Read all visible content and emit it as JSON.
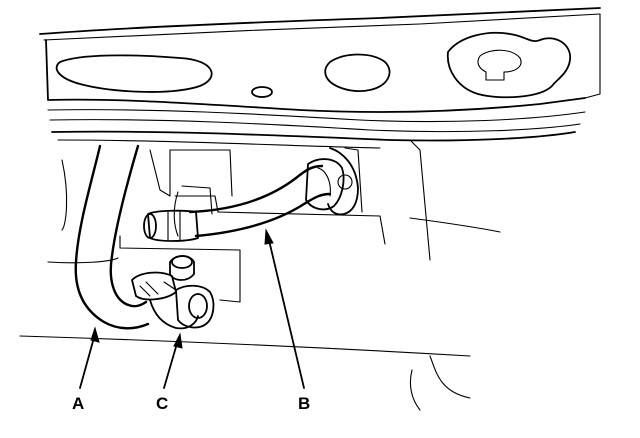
{
  "figure": {
    "callouts": {
      "a": "A",
      "b": "B",
      "c": "C"
    },
    "colors": {
      "line": "#000000",
      "background": "#ffffff"
    }
  }
}
